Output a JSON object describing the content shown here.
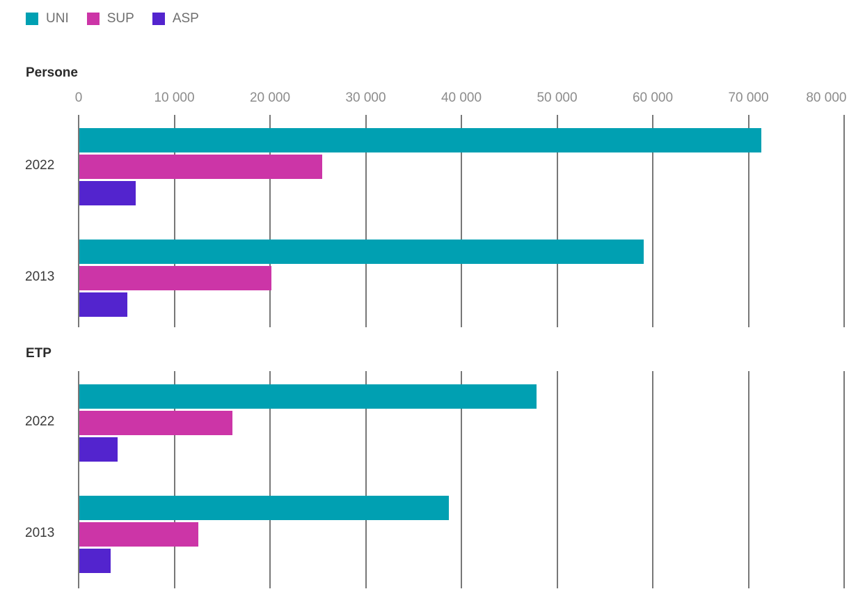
{
  "legend": {
    "items": [
      {
        "label": "UNI",
        "color": "#00A0B2"
      },
      {
        "label": "SUP",
        "color": "#CC35A7"
      },
      {
        "label": "ASP",
        "color": "#5324CE"
      }
    ]
  },
  "axis": {
    "min": 0,
    "max": 80000,
    "tick_step": 10000,
    "tick_labels": [
      "0",
      "10 000",
      "20 000",
      "30 000",
      "40 000",
      "50 000",
      "60 000",
      "70 000",
      "80 000"
    ]
  },
  "chart_data": [
    {
      "type": "bar",
      "orientation": "horizontal",
      "title": "Persone",
      "categories": [
        "2022",
        "2013"
      ],
      "series": [
        {
          "name": "UNI",
          "values": [
            71300,
            59000
          ]
        },
        {
          "name": "SUP",
          "values": [
            25400,
            20100
          ]
        },
        {
          "name": "ASP",
          "values": [
            5900,
            5000
          ]
        }
      ],
      "xlim": [
        0,
        80000
      ],
      "grid": true,
      "legend_position": "top"
    },
    {
      "type": "bar",
      "orientation": "horizontal",
      "title": "ETP",
      "categories": [
        "2022",
        "2013"
      ],
      "series": [
        {
          "name": "UNI",
          "values": [
            47800,
            38600
          ]
        },
        {
          "name": "SUP",
          "values": [
            16000,
            12400
          ]
        },
        {
          "name": "ASP",
          "values": [
            4000,
            3300
          ]
        }
      ],
      "xlim": [
        0,
        80000
      ],
      "grid": true,
      "legend_position": "top"
    }
  ]
}
